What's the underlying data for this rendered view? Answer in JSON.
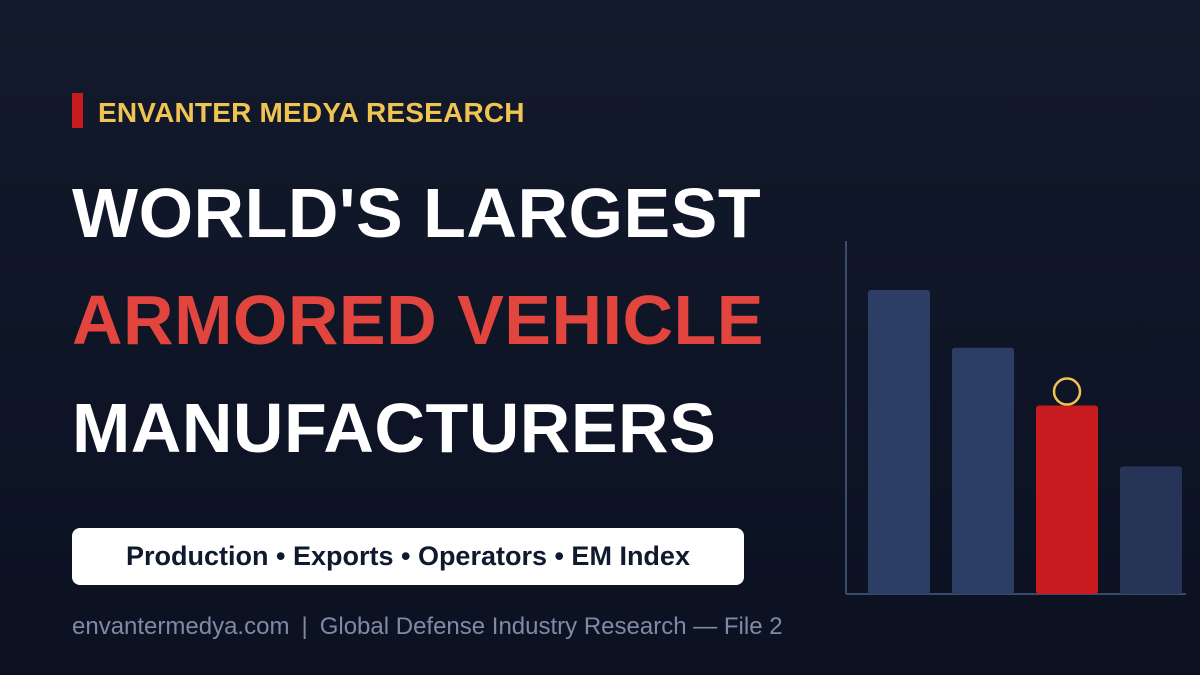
{
  "kicker": "ENVANTER MEDYA RESEARCH",
  "headline": {
    "line1": "WORLD'S LARGEST",
    "line2": "ARMORED VEHICLE",
    "line3": "MANUFACTURERS"
  },
  "tags": "Production • Exports • Operators • EM Index",
  "footer": {
    "site": "envantermedya.com",
    "separator": "|",
    "description": "Global Defense Industry Research — File 2"
  },
  "colors": {
    "background": "#0e1526",
    "accent_red": "#c81b1f",
    "headline_red": "#e2443e",
    "kicker_gold": "#f0c452",
    "bar_blue": "#2c3e66",
    "bar_dark": "#253457",
    "highlight_circle": "#f0c452"
  },
  "chart_data": {
    "type": "bar",
    "categories": [
      "",
      "",
      "",
      ""
    ],
    "values": [
      100,
      81,
      62,
      42
    ],
    "highlighted_index": 2,
    "series_colors": [
      "#2c3e66",
      "#2c3e66",
      "#c81b1f",
      "#253457"
    ],
    "grid": false,
    "decorative": true
  }
}
